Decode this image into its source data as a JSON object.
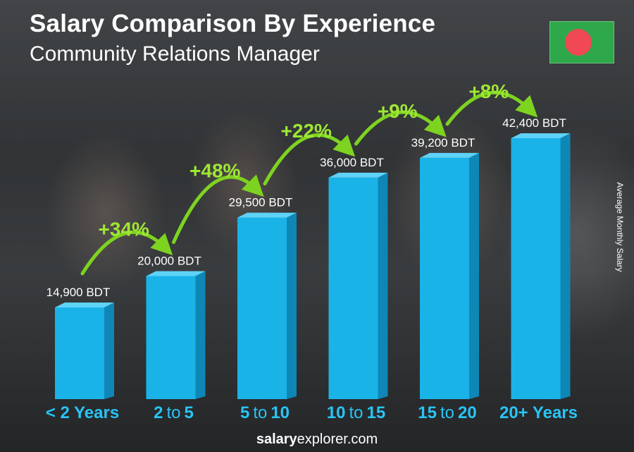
{
  "header": {
    "title": "Salary Comparison By Experience",
    "subtitle": "Community Relations Manager"
  },
  "side_label": "Average Monthly Salary",
  "footer": {
    "brand_bold": "salary",
    "brand_rest": "explorer.com"
  },
  "colors": {
    "bar_front": "#1ab3e8",
    "bar_side": "#0e87b6",
    "bar_top": "#5fd2f7",
    "category_accent": "#28c4f5",
    "arrow": "#7ed321",
    "percent_text": "#9ee832",
    "flag_green": "#2ea84a",
    "flag_disc": "#f04855"
  },
  "chart_data": {
    "type": "bar",
    "categories": [
      {
        "a": "< 2 Years",
        "to": "",
        "b": ""
      },
      {
        "a": "2",
        "to": "to",
        "b": "5"
      },
      {
        "a": "5",
        "to": "to",
        "b": "10"
      },
      {
        "a": "10",
        "to": "to",
        "b": "15"
      },
      {
        "a": "15",
        "to": "to",
        "b": "20"
      },
      {
        "a": "20+ Years",
        "to": "",
        "b": ""
      }
    ],
    "values": [
      14900,
      20000,
      29500,
      36000,
      39200,
      42400
    ],
    "value_labels": [
      "14,900 BDT",
      "20,000 BDT",
      "29,500 BDT",
      "36,000 BDT",
      "39,200 BDT",
      "42,400 BDT"
    ],
    "increases": [
      "+34%",
      "+48%",
      "+22%",
      "+9%",
      "+8%"
    ],
    "ylabel": "Average Monthly Salary",
    "ylim": [
      0,
      42400
    ]
  }
}
